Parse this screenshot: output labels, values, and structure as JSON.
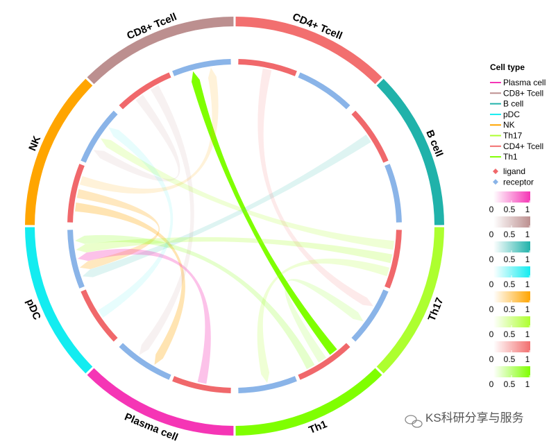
{
  "chart_data": {
    "type": "chord",
    "sectors": [
      {
        "name": "CD4+ Tcell",
        "color": "#f26f6f"
      },
      {
        "name": "B cell",
        "color": "#20b2aa"
      },
      {
        "name": "Th17",
        "color": "#adff2f"
      },
      {
        "name": "Th1",
        "color": "#7fff00"
      },
      {
        "name": "Plasma cell",
        "color": "#f535b5"
      },
      {
        "name": "pDC",
        "color": "#13ecf0"
      },
      {
        "name": "NK",
        "color": "#ffa500"
      },
      {
        "name": "CD8+ Tcell",
        "color": "#bc8f8f"
      }
    ],
    "legend_title": "Cell type",
    "series": [
      {
        "name": "Plasma cell",
        "color": "#f535b5"
      },
      {
        "name": "CD8+ Tcell",
        "color": "#bc8f8f"
      },
      {
        "name": "B cell",
        "color": "#20b2aa"
      },
      {
        "name": "pDC",
        "color": "#13ecf0"
      },
      {
        "name": "NK",
        "color": "#ffa500"
      },
      {
        "name": "Th17",
        "color": "#adff2f"
      },
      {
        "name": "CD4+ Tcell",
        "color": "#f26f6f"
      },
      {
        "name": "Th1",
        "color": "#7fff00"
      }
    ],
    "segment_types": [
      {
        "name": "ligand",
        "color": "#f0686b"
      },
      {
        "name": "receptor",
        "color": "#8ab4e8"
      }
    ],
    "colorbar_ticks": [
      0,
      0.5,
      1
    ],
    "links": [
      {
        "from": "Th1",
        "to": "CD8+ Tcell",
        "value": 1
      },
      {
        "from": "B cell",
        "to": "pDC",
        "value": 0.15
      },
      {
        "from": "NK",
        "to": "Plasma cell",
        "value": 0.3
      },
      {
        "from": "NK",
        "to": "pDC",
        "value": 0.25
      },
      {
        "from": "Plasma cell",
        "to": "pDC",
        "value": 0.3
      },
      {
        "from": "CD8+ Tcell",
        "to": "NK",
        "value": 0.12
      },
      {
        "from": "CD8+ Tcell",
        "to": "Plasma cell",
        "value": 0.12
      },
      {
        "from": "CD4+ Tcell",
        "to": "Th17",
        "value": 0.15
      },
      {
        "from": "Th17",
        "to": "NK",
        "value": 0.2
      },
      {
        "from": "Th17",
        "to": "pDC",
        "value": 0.25
      },
      {
        "from": "Th17",
        "to": "Th1",
        "value": 0.2
      },
      {
        "from": "Th1",
        "to": "Th17",
        "value": 0.15
      },
      {
        "from": "Th1",
        "to": "pDC",
        "value": 0.2
      },
      {
        "from": "pDC",
        "to": "NK",
        "value": 0.1
      },
      {
        "from": "NK",
        "to": "CD8+ Tcell",
        "value": 0.15
      }
    ]
  },
  "watermark": "KS科研分享与服务"
}
